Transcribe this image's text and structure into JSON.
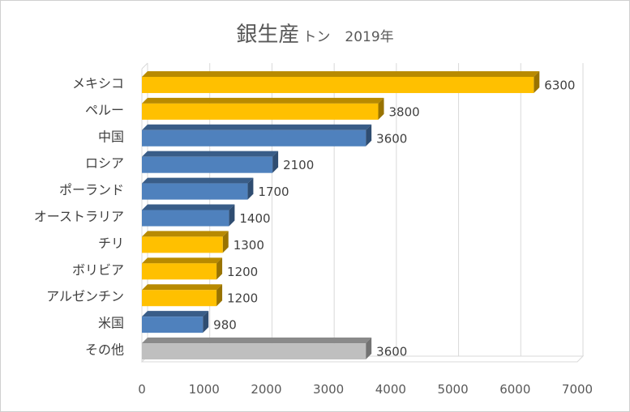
{
  "chart_data": {
    "type": "bar",
    "orientation": "horizontal",
    "title": "銀生産",
    "title_unit": "トン",
    "title_year": "2019年",
    "categories": [
      "メキシコ",
      "ペルー",
      "中国",
      "ロシア",
      "ポーランド",
      "オーストラリア",
      "チリ",
      "ボリビア",
      "アルゼンチン",
      "米国",
      "その他"
    ],
    "values": [
      6300,
      3800,
      3600,
      2100,
      1700,
      1400,
      1300,
      1200,
      1200,
      980,
      3600
    ],
    "value_labels": [
      "6300",
      "3800",
      "3600",
      "2100",
      "1700",
      "1400",
      "1300",
      "1200",
      "1200",
      "980",
      "3600"
    ],
    "colors": [
      "#ffc000",
      "#ffc000",
      "#4f81bd",
      "#4f81bd",
      "#4f81bd",
      "#4f81bd",
      "#ffc000",
      "#ffc000",
      "#ffc000",
      "#4f81bd",
      "#bfbfbf"
    ],
    "xlim": [
      0,
      7000
    ],
    "x_ticks": [
      0,
      1000,
      2000,
      3000,
      4000,
      5000,
      6000,
      7000
    ],
    "x_tick_labels": [
      "0",
      "1000",
      "2000",
      "3000",
      "4000",
      "5000",
      "6000",
      "7000"
    ],
    "grid": true,
    "style": "3d-bar"
  }
}
